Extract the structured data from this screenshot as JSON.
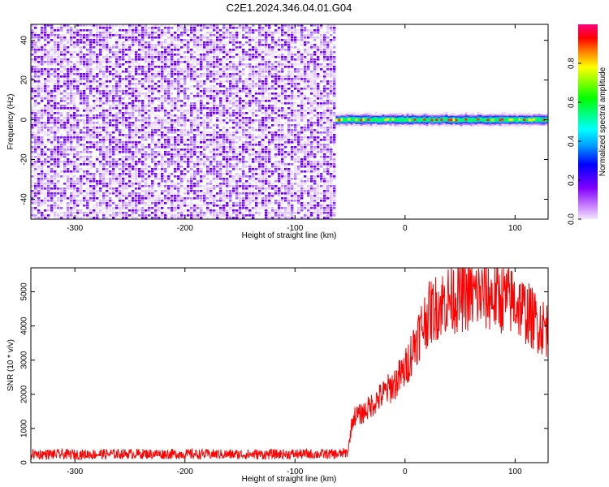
{
  "figure": {
    "title": "C2E1.2024.346.04.01.G04"
  },
  "chart_data": [
    {
      "type": "heatmap",
      "title": "C2E1.2024.346.04.01.G04",
      "xlabel": "Height of straight line (km)",
      "ylabel": "Frequency (Hz)",
      "xlim": [
        -340,
        130
      ],
      "ylim": [
        -50,
        48
      ],
      "xticks": [
        -300,
        -200,
        -100,
        0,
        100
      ],
      "yticks": [
        -40,
        -20,
        0,
        20,
        40
      ],
      "noise_region_x": [
        -340,
        -63
      ],
      "signal_region_x": [
        -63,
        130
      ],
      "signal_center_freq_hz": 0,
      "colorbar": {
        "label": "Normalized spectral amplitude",
        "range": [
          0,
          1
        ],
        "ticks": [
          0.0,
          0.2,
          0.4,
          0.6,
          0.8
        ],
        "colors": [
          "#f2e6ff",
          "#c070ff",
          "#8000ff",
          "#0000ff",
          "#00a0ff",
          "#00ffff",
          "#00ff80",
          "#00ff00",
          "#80ff00",
          "#ffff00",
          "#ff8000",
          "#ff0000",
          "#ff0080"
        ]
      }
    },
    {
      "type": "line",
      "xlabel": "Height of straight line (km)",
      "ylabel": "SNR (10 * v/v)",
      "xlim": [
        -340,
        130
      ],
      "ylim": [
        0,
        5700
      ],
      "xticks": [
        -300,
        -200,
        -100,
        0,
        100
      ],
      "yticks": [
        0,
        1000,
        2000,
        3000,
        4000,
        5000
      ],
      "color": "#ff0000",
      "series": [
        {
          "x": [
            -340,
            -300,
            -250,
            -200,
            -150,
            -100,
            -60,
            -52,
            -48,
            -45,
            -40,
            -30,
            -20,
            -10,
            0,
            10,
            20,
            30,
            40,
            50,
            60,
            70,
            80,
            90,
            100,
            110,
            120,
            130
          ],
          "y": [
            250,
            240,
            260,
            250,
            240,
            250,
            250,
            300,
            1200,
            1400,
            1400,
            1700,
            2000,
            2300,
            2700,
            3600,
            4300,
            4600,
            4800,
            4850,
            4900,
            4900,
            4850,
            4800,
            4700,
            4400,
            4100,
            3900
          ]
        }
      ]
    }
  ]
}
